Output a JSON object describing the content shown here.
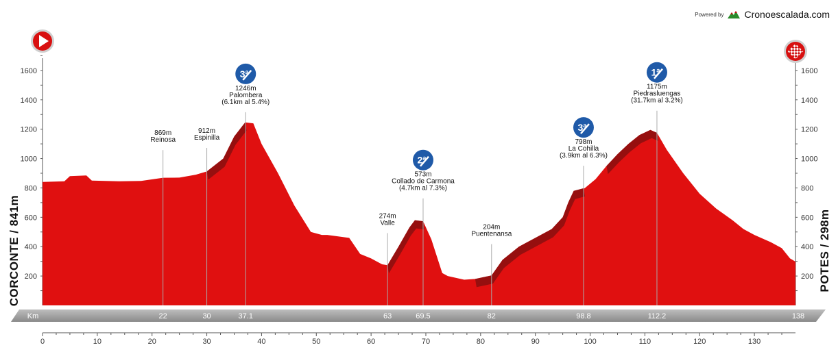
{
  "brand": {
    "powered_by": "Powered by",
    "name": "Cronoescalada.com",
    "logo_icon": "mountain-logo-icon"
  },
  "colors": {
    "profile": "#e01010",
    "profile_dark": "#a81010",
    "climb_dark": "#8e1010",
    "km_band": "#9e9e9e",
    "badge": "#1f5aa8"
  },
  "chart_data": {
    "type": "area",
    "title": "",
    "xlabel": "",
    "ylabel": "",
    "x_ticks": [
      0,
      10,
      20,
      30,
      40,
      50,
      60,
      70,
      80,
      90,
      100,
      110,
      120,
      130
    ],
    "y_ticks": [
      200,
      400,
      600,
      800,
      1000,
      1200,
      1400,
      1600
    ],
    "xlim": [
      0,
      137.5
    ],
    "ylim": [
      0,
      1800
    ],
    "start_label": "CORCONTE / 841m",
    "finish_label": "POTES / 298m",
    "km_band_label": "Km",
    "km_markers": [
      {
        "km": 22,
        "label": "22"
      },
      {
        "km": 30,
        "label": "30"
      },
      {
        "km": 37.1,
        "label": "37.1"
      },
      {
        "km": 63,
        "label": "63"
      },
      {
        "km": 69.5,
        "label": "69.5"
      },
      {
        "km": 82,
        "label": "82"
      },
      {
        "km": 98.8,
        "label": "98.8"
      },
      {
        "km": 112.2,
        "label": "112.2"
      },
      {
        "km": 138,
        "label": "138"
      }
    ],
    "profile": {
      "x": [
        0,
        4,
        5,
        8,
        9,
        14,
        18,
        22,
        25,
        28,
        30,
        33,
        35,
        37,
        38.5,
        40,
        43,
        46,
        49,
        51,
        52,
        56,
        58,
        60,
        62,
        63,
        65,
        67,
        68,
        69.5,
        71,
        73,
        74,
        77,
        79,
        82,
        84,
        87,
        90,
        93,
        95,
        96,
        97,
        99,
        101,
        103,
        105,
        107,
        109,
        111,
        112.2,
        114,
        117,
        120,
        123,
        126,
        128,
        130,
        133,
        135,
        136.5,
        137.5
      ],
      "y": [
        841,
        845,
        880,
        885,
        850,
        845,
        848,
        869,
        870,
        890,
        912,
        1000,
        1150,
        1246,
        1240,
        1100,
        900,
        680,
        500,
        480,
        480,
        460,
        350,
        320,
        280,
        274,
        400,
        530,
        580,
        573,
        450,
        220,
        200,
        175,
        180,
        204,
        310,
        400,
        460,
        520,
        600,
        700,
        780,
        798,
        860,
        950,
        1030,
        1100,
        1160,
        1195,
        1175,
        1060,
        900,
        760,
        660,
        580,
        520,
        480,
        430,
        390,
        320,
        298
      ]
    },
    "climbs": [
      {
        "x": [
          30,
          33,
          35,
          37
        ],
        "y": [
          912,
          1000,
          1150,
          1246
        ]
      },
      {
        "x": [
          63,
          65,
          67,
          68,
          69.5
        ],
        "y": [
          274,
          400,
          530,
          580,
          573
        ]
      },
      {
        "x": [
          79,
          82,
          84,
          87,
          90,
          93,
          95,
          96,
          97,
          98.8
        ],
        "y": [
          180,
          204,
          310,
          400,
          460,
          520,
          600,
          700,
          780,
          798
        ]
      },
      {
        "x": [
          103,
          105,
          107,
          109,
          111,
          112.2
        ],
        "y": [
          950,
          1030,
          1100,
          1160,
          1195,
          1175
        ]
      }
    ],
    "annotations": [
      {
        "km": 22,
        "label_y": 1160,
        "lines": [
          "869m",
          "Reinosa"
        ],
        "badge": ""
      },
      {
        "km": 30,
        "label_y": 1175,
        "lines": [
          "912m",
          "Espinilla"
        ],
        "badge": ""
      },
      {
        "km": 37.1,
        "label_y": 1465,
        "lines": [
          "1246m",
          "Palombera",
          "(6.1km al 5.4%)"
        ],
        "badge": "3ª"
      },
      {
        "km": 63,
        "label_y": 595,
        "lines": [
          "274m",
          "Valle"
        ],
        "badge": ""
      },
      {
        "km": 69.5,
        "label_y": 878,
        "lines": [
          "573m",
          "Collado de Carmona",
          "(4.7km al 7.3%)"
        ],
        "badge": "2ª"
      },
      {
        "km": 82,
        "label_y": 520,
        "lines": [
          "204m",
          "Puentenansa"
        ],
        "badge": ""
      },
      {
        "km": 98.8,
        "label_y": 1100,
        "lines": [
          "798m",
          "La Cohilla",
          "(3.9km al 6.3%)"
        ],
        "badge": "3ª"
      },
      {
        "km": 112.2,
        "label_y": 1475,
        "lines": [
          "1175m",
          "Piedrasluengas",
          "(31.7km al 3.2%)"
        ],
        "badge": "1ª"
      }
    ],
    "start_icon": "start-play-icon",
    "finish_icon": "finish-checkered-icon",
    "grid": false
  }
}
